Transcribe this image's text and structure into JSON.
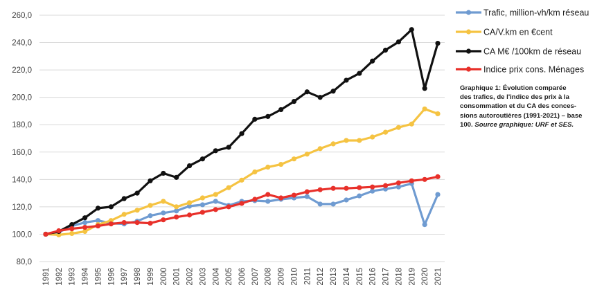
{
  "chart_data": {
    "type": "line",
    "categories": [
      "1991",
      "1992",
      "1993",
      "1994",
      "1995",
      "1996",
      "1997",
      "1998",
      "1999",
      "2000",
      "2001",
      "2002",
      "2003",
      "2004",
      "2005",
      "2006",
      "2007",
      "2008",
      "2009",
      "2010",
      "2011",
      "2012",
      "2013",
      "2014",
      "2015",
      "2016",
      "2017",
      "2018",
      "2019",
      "2020",
      "2021"
    ],
    "ylim": [
      80,
      260
    ],
    "yticks": [
      "80,0",
      "100,0",
      "120,0",
      "140,0",
      "160,0",
      "180,0",
      "200,0",
      "220,0",
      "240,0",
      "260,0"
    ],
    "ytick_values": [
      80,
      100,
      120,
      140,
      160,
      180,
      200,
      220,
      240,
      260
    ],
    "grid": true,
    "legend_position": "right",
    "series": [
      {
        "name": "Trafic, million-vh/km réseau",
        "color": "#6f9bd1",
        "values": [
          100,
          101.5,
          106,
          108.5,
          110,
          108,
          107.5,
          109.5,
          113.5,
          115.5,
          117,
          120.5,
          121.5,
          124,
          121,
          124,
          124.5,
          124,
          125.5,
          126.5,
          127.5,
          122,
          122,
          125,
          128,
          131.5,
          133,
          134.5,
          137,
          107,
          129
        ]
      },
      {
        "name": "CA/V.km en €cent",
        "color": "#f5c342",
        "values": [
          100,
          99.5,
          100.5,
          102,
          107,
          110,
          114.5,
          117.5,
          121,
          124,
          120,
          123,
          126.5,
          129,
          134,
          139.5,
          145.5,
          149,
          151,
          155,
          158.5,
          162.5,
          166,
          168.5,
          168.5,
          171,
          174.5,
          178,
          180.5,
          191.5,
          188
        ]
      },
      {
        "name": "CA M€ /100km de réseau",
        "color": "#111111",
        "values": [
          100,
          102,
          107,
          112,
          119,
          120,
          126,
          130,
          139,
          144.5,
          141.5,
          150,
          155,
          161,
          163.5,
          173.5,
          184,
          186,
          191,
          197,
          204,
          200,
          204.5,
          212.5,
          217.5,
          226.5,
          234.5,
          240.5,
          249.5,
          206.5,
          239.5
        ]
      },
      {
        "name": "Indice prix cons. Ménages",
        "color": "#e8302a",
        "values": [
          100,
          102.5,
          104,
          105,
          106,
          107.5,
          108.5,
          108.5,
          108,
          110.5,
          112.5,
          114,
          116,
          118,
          120,
          122.5,
          125.5,
          129,
          126.5,
          128.5,
          131,
          132.5,
          133.5,
          133.5,
          134,
          134.5,
          135.5,
          137.5,
          139,
          140,
          142
        ]
      }
    ]
  },
  "caption": {
    "lines": [
      "Graphique 1: Évolution comparée",
      "des trafics, de l'indice des prix à la",
      "consommation et du CA des conces-",
      "sions autoroutières (1991-2021) – base",
      "100."
    ],
    "source": "Source graphique: URF et SES."
  }
}
